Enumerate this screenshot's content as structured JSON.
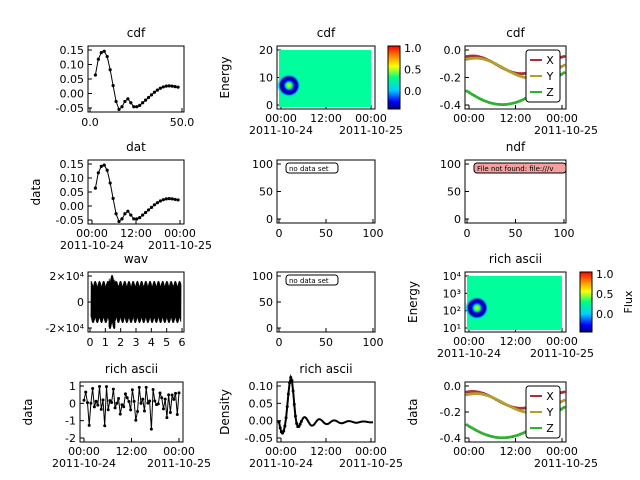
{
  "panels": [
    {
      "title": "cdf",
      "ylabel": "",
      "x_ticks": [
        "0.0",
        "50.0"
      ],
      "y_ticks": [
        "0.15",
        "0.10",
        "0.05",
        "0.00",
        "-0.05"
      ],
      "time_ticks": [],
      "date_ticks": []
    },
    {
      "title": "cdf",
      "ylabel": "Energy",
      "x_ticks": [],
      "y_ticks": [
        "20",
        "10",
        "0"
      ],
      "time_ticks": [
        "00:00",
        "12:00",
        "00:00"
      ],
      "date_ticks": [
        "2011-10-24",
        "2011-10-25"
      ],
      "colorbar_ticks": [
        "1.0",
        "0.5",
        "0.0"
      ]
    },
    {
      "title": "cdf",
      "ylabel": "",
      "x_ticks": [],
      "y_ticks": [
        "0.0",
        "-0.2",
        "-0.4"
      ],
      "time_ticks": [
        "00:00",
        "12:00",
        "00:00"
      ],
      "date_ticks": [
        "2011-10-25"
      ],
      "legend": [
        "X",
        "Y",
        "Z"
      ]
    },
    {
      "title": "dat",
      "ylabel": "data",
      "x_ticks": [],
      "y_ticks": [
        "0.15",
        "0.10",
        "0.05",
        "0.00",
        "-0.05"
      ],
      "time_ticks": [
        "00:00",
        "12:00",
        "00:00"
      ],
      "date_ticks": [
        "2011-10-24",
        "2011-10-25"
      ]
    },
    {
      "title": "",
      "ylabel": "",
      "x_ticks": [
        "0",
        "50",
        "100"
      ],
      "y_ticks": [
        "100",
        "50",
        "0"
      ],
      "time_ticks": [],
      "date_ticks": [],
      "message": "no data set"
    },
    {
      "title": "ndf",
      "ylabel": "",
      "x_ticks": [
        "0",
        "50",
        "100"
      ],
      "y_ticks": [
        "100",
        "50",
        "0"
      ],
      "time_ticks": [],
      "date_ticks": [],
      "message": "File not found: file:///v"
    },
    {
      "title": "wav",
      "ylabel": "",
      "x_ticks": [
        "0",
        "1",
        "2",
        "3",
        "4",
        "5",
        "6"
      ],
      "y_ticks": [
        "2×10⁴",
        "0",
        "-2×10⁴"
      ],
      "time_ticks": [],
      "date_ticks": []
    },
    {
      "title": "",
      "ylabel": "",
      "x_ticks": [
        "0",
        "50",
        "100"
      ],
      "y_ticks": [
        "100",
        "50",
        "0"
      ],
      "time_ticks": [],
      "date_ticks": [],
      "message": "no data set"
    },
    {
      "title": "rich ascii",
      "ylabel": "Energy",
      "x_ticks": [],
      "y_ticks": [
        "10⁴",
        "10³",
        "10²",
        "10¹"
      ],
      "time_ticks": [
        "00:00",
        "12:00",
        "00:00"
      ],
      "date_ticks": [
        "2011-10-24",
        "2011-10-25"
      ],
      "colorbar_ticks": [
        "1.0",
        "0.5",
        "0.0"
      ],
      "colorbar_label": "Flux"
    },
    {
      "title": "rich ascii",
      "ylabel": "data",
      "x_ticks": [],
      "y_ticks": [
        "1",
        "0",
        "-1",
        "-2"
      ],
      "time_ticks": [
        "00:00",
        "12:00",
        "00:00"
      ],
      "date_ticks": [
        "2011-10-24",
        "2011-10-25"
      ]
    },
    {
      "title": "rich ascii",
      "ylabel": "Density",
      "x_ticks": [],
      "y_ticks": [
        "0.10",
        "0.05",
        "0.00",
        "-0.05"
      ],
      "time_ticks": [
        "00:00",
        "12:00",
        "00:00"
      ],
      "date_ticks": [
        "2011-10-24",
        "2011-10-25"
      ]
    },
    {
      "title": "",
      "ylabel": "data",
      "x_ticks": [],
      "y_ticks": [
        "0.0",
        "-0.2",
        "-0.4"
      ],
      "time_ticks": [
        "00:00",
        "12:00",
        "00:00"
      ],
      "date_ticks": [
        "2011-10-25"
      ],
      "legend": [
        "X",
        "Y",
        "Z"
      ]
    }
  ],
  "colors": {
    "line": "#000000",
    "x_series": "#b03030",
    "y_series": "#b0a030",
    "z_series": "#30b030",
    "message_error_bg": "#f4a0a0",
    "message_bg": "#ffffff"
  },
  "chart_data": [
    {
      "type": "line",
      "title": "cdf",
      "x": [
        0,
        2,
        4,
        6,
        8,
        10,
        12,
        14,
        16,
        18,
        20,
        22,
        24,
        26,
        28,
        30,
        32,
        34,
        36,
        38,
        40,
        42,
        44,
        46,
        48,
        50,
        52,
        54,
        56
      ],
      "y": [
        0.06,
        0.12,
        0.145,
        0.15,
        0.13,
        0.08,
        0.02,
        -0.04,
        -0.07,
        -0.06,
        -0.04,
        -0.03,
        -0.045,
        -0.06,
        -0.06,
        -0.055,
        -0.045,
        -0.035,
        -0.025,
        -0.015,
        -0.005,
        0.003,
        0.01,
        0.015,
        0.018,
        0.019,
        0.018,
        0.016,
        0.014
      ],
      "xlim": [
        -5,
        60
      ],
      "ylim": [
        -0.08,
        0.17
      ]
    },
    {
      "type": "heatmap",
      "title": "cdf",
      "ylabel": "Energy",
      "ylim": [
        0,
        28
      ],
      "colorbar_range": [
        0,
        1.0
      ]
    },
    {
      "type": "line",
      "title": "cdf",
      "series": [
        {
          "name": "X"
        },
        {
          "name": "Y"
        },
        {
          "name": "Z"
        }
      ],
      "ylim": [
        -0.42,
        0.15
      ]
    },
    {
      "type": "line",
      "title": "dat",
      "ylabel": "data",
      "ylim": [
        -0.08,
        0.17
      ]
    },
    {
      "type": "scatter",
      "title": "",
      "xlim": [
        0,
        100
      ],
      "ylim": [
        0,
        100
      ],
      "message": "no data set"
    },
    {
      "type": "scatter",
      "title": "ndf",
      "xlim": [
        0,
        100
      ],
      "ylim": [
        0,
        100
      ],
      "message": "File not found: file:///v"
    },
    {
      "type": "line",
      "title": "wav",
      "xlim": [
        -0.2,
        6.2
      ],
      "ylim": [
        -40000,
        40000
      ]
    },
    {
      "type": "scatter",
      "title": "",
      "xlim": [
        0,
        100
      ],
      "ylim": [
        0,
        100
      ],
      "message": "no data set"
    },
    {
      "type": "heatmap",
      "title": "rich ascii",
      "ylabel": "Energy",
      "colorbar_label": "Flux",
      "colorbar_range": [
        0,
        1.0
      ],
      "log_y": true
    },
    {
      "type": "line",
      "title": "rich ascii",
      "ylabel": "data",
      "ylim": [
        -2.8,
        1.8
      ]
    },
    {
      "type": "line",
      "title": "rich ascii",
      "ylabel": "Density",
      "ylim": [
        -0.07,
        0.14
      ]
    },
    {
      "type": "line",
      "title": "",
      "ylabel": "data",
      "series": [
        {
          "name": "X"
        },
        {
          "name": "Y"
        },
        {
          "name": "Z"
        }
      ],
      "ylim": [
        -0.42,
        0.15
      ]
    }
  ]
}
